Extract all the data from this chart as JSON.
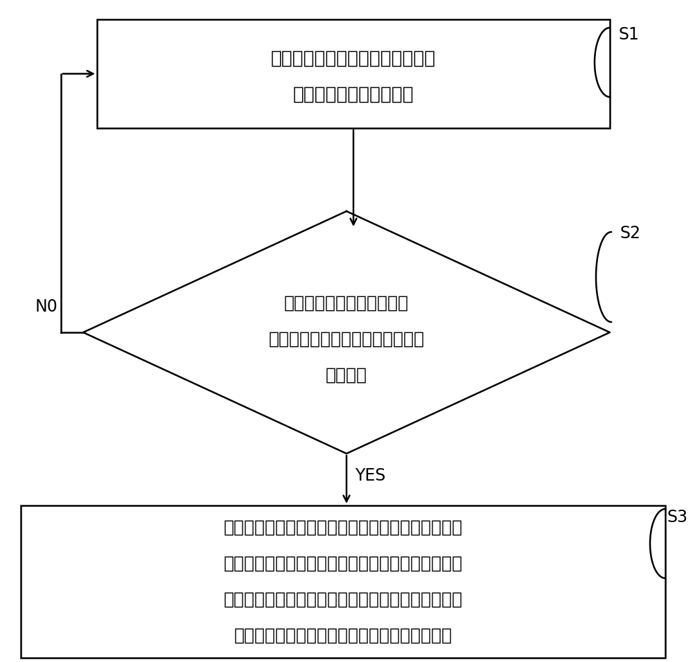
{
  "bg_color": "#ffffff",
  "line_color": "#000000",
  "text_color": "#000000",
  "box1_text_line1": "在单制冷或单制热模式下，控制所",
  "box1_text_line2": "述压缩机以第一频率运行",
  "box1_label": "S1",
  "diamond_text_line1": "判断所述压缩机以所述第一",
  "diamond_text_line2": "频率运行的运行时间是否达到第一",
  "diamond_text_line3": "预设时间",
  "diamond_label": "S2",
  "no_label": "N0",
  "yes_label": "YES",
  "box3_text_line1": "所述空调系统进入回油状态，控制所述压缩机、第三",
  "box3_text_line2": "管路、第二管路及气液分离器依次连通形成冷媒循环",
  "box3_text_line3": "回路，且，控制所述压缩机、室外换热器、第一管路",
  "box3_text_line4": "、室内换热器、第二管路及气液分离器依次连通",
  "box3_label": "S3",
  "font_size_box": 19,
  "font_size_diamond": 18,
  "font_size_box3": 18,
  "font_size_label": 17,
  "font_size_yes_no": 17
}
